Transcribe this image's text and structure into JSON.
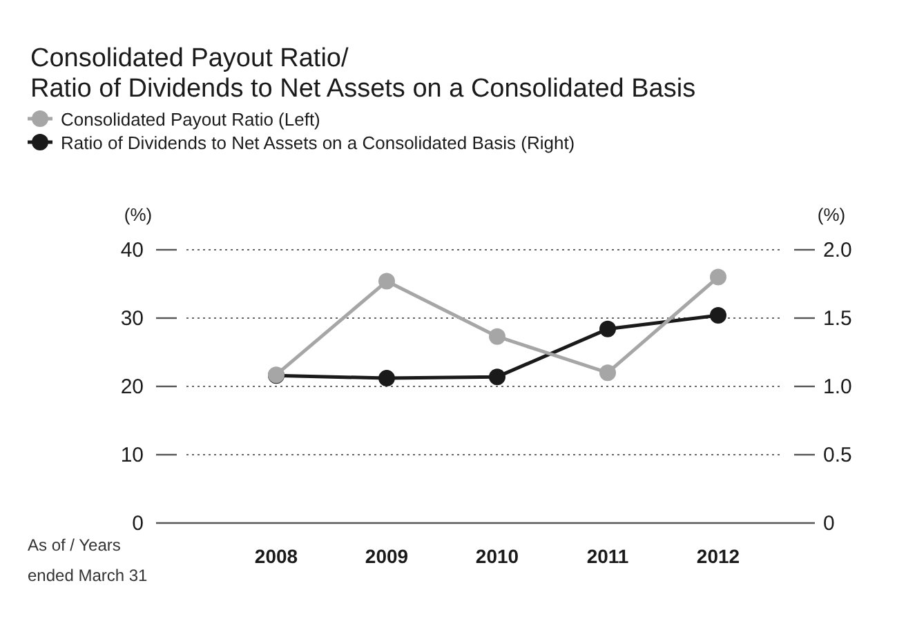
{
  "chart_data": {
    "type": "line",
    "title": "Consolidated Payout Ratio/\nRatio of Dividends to Net Assets on a Consolidated Basis",
    "categories": [
      "2008",
      "2009",
      "2010",
      "2011",
      "2012"
    ],
    "series": [
      {
        "name": "Consolidated Payout Ratio (Left)",
        "color": "#a6a6a6",
        "values": [
          21.7,
          35.4,
          27.3,
          22.0,
          36.0
        ]
      },
      {
        "name": "Ratio of Dividends to Net Assets on a Consolidated Basis (Right)",
        "color": "#1a1a1a",
        "values": [
          1.08,
          1.06,
          1.07,
          1.42,
          1.52
        ],
        "axis": "y2"
      }
    ],
    "ylabel": "(%)",
    "y2label": "(%)",
    "ylim": [
      0,
      40
    ],
    "yticks": [
      0,
      10,
      20,
      30,
      40
    ],
    "y2lim": [
      0,
      2.0
    ],
    "y2ticks": [
      {
        "value": 0,
        "label": "0"
      },
      {
        "value": 0.5,
        "label": "0.5"
      },
      {
        "value": 1.0,
        "label": "1.0"
      },
      {
        "value": 1.5,
        "label": "1.5"
      },
      {
        "value": 2.0,
        "label": "2.0"
      }
    ],
    "grid": "y",
    "legend": "top",
    "marker": "circle",
    "line_style": "solid",
    "annotations": [
      "As of / Years\nended March 31"
    ]
  }
}
